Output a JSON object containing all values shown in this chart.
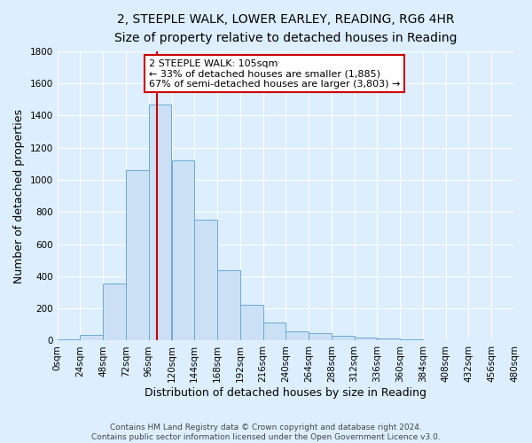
{
  "title_line1": "2, STEEPLE WALK, LOWER EARLEY, READING, RG6 4HR",
  "title_line2": "Size of property relative to detached houses in Reading",
  "xlabel": "Distribution of detached houses by size in Reading",
  "ylabel": "Number of detached properties",
  "bar_values": [
    10,
    35,
    355,
    1060,
    1470,
    1120,
    750,
    440,
    225,
    115,
    55,
    45,
    30,
    18,
    12,
    8,
    5,
    3,
    2,
    1
  ],
  "bin_edges": [
    0,
    24,
    48,
    72,
    96,
    120,
    144,
    168,
    192,
    216,
    240,
    264,
    288,
    312,
    336,
    360,
    384,
    408,
    432,
    456,
    480
  ],
  "bar_color": "#cce0f5",
  "bar_edge_color": "#6aaad4",
  "property_size": 105,
  "vline_color": "#cc0000",
  "annotation_line1": "2 STEEPLE WALK: 105sqm",
  "annotation_line2": "← 33% of detached houses are smaller (1,885)",
  "annotation_line3": "67% of semi-detached houses are larger (3,803) →",
  "annotation_box_edgecolor": "#cc0000",
  "annotation_box_facecolor": "#ffffff",
  "ylim": [
    0,
    1800
  ],
  "yticks": [
    0,
    200,
    400,
    600,
    800,
    1000,
    1200,
    1400,
    1600,
    1800
  ],
  "xtick_labels": [
    "0sqm",
    "24sqm",
    "48sqm",
    "72sqm",
    "96sqm",
    "120sqm",
    "144sqm",
    "168sqm",
    "192sqm",
    "216sqm",
    "240sqm",
    "264sqm",
    "288sqm",
    "312sqm",
    "336sqm",
    "360sqm",
    "384sqm",
    "408sqm",
    "432sqm",
    "456sqm",
    "480sqm"
  ],
  "footer_text": "Contains HM Land Registry data © Crown copyright and database right 2024.\nContains public sector information licensed under the Open Government Licence v3.0.",
  "bg_color": "#ddeeff",
  "grid_color": "#ffffff",
  "title_fontsize": 10,
  "subtitle_fontsize": 9,
  "axis_label_fontsize": 9,
  "tick_fontsize": 7.5,
  "annotation_fontsize": 8,
  "footer_fontsize": 6.5
}
